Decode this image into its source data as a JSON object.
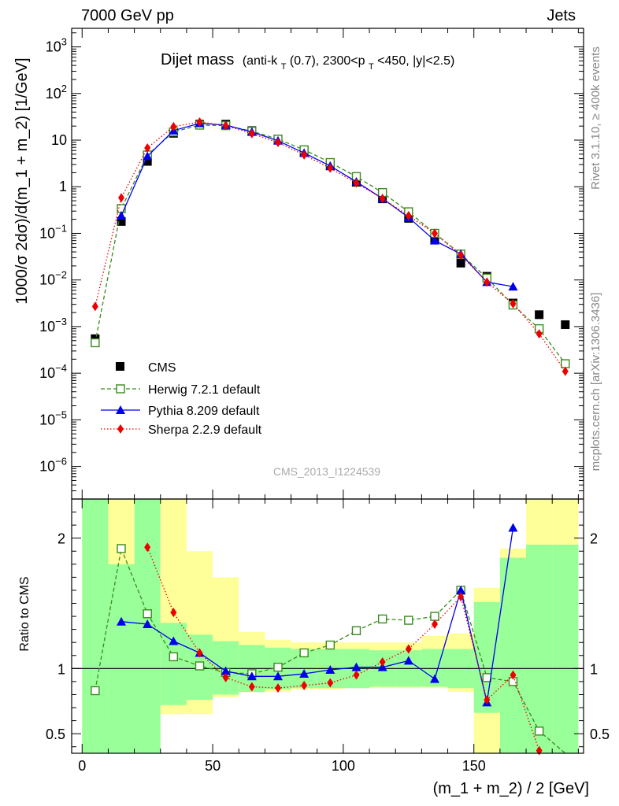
{
  "header": {
    "left": "7000 GeV pp",
    "right": "Jets",
    "rivet": "Rivet 3.1.10, ≥ 400k events",
    "mcplots": "mcplots.cern.ch [arXiv:1306.3436]",
    "analysis": "CMS_2013_I1224539"
  },
  "title": {
    "main": "Dijet mass",
    "sub_a": "(anti-k",
    "sub_a_subscript": "T",
    "sub_b": "(0.7), 2300<p",
    "sub_b_subscript": "T",
    "sub_c": "<450, |y|<2.5)"
  },
  "legend": [
    {
      "key": "cms",
      "label": "CMS"
    },
    {
      "key": "herwig",
      "label": "Herwig 7.2.1 default"
    },
    {
      "key": "pythia",
      "label": "Pythia 8.209 default"
    },
    {
      "key": "sherpa",
      "label": "Sherpa 2.2.9 default"
    }
  ],
  "colors": {
    "cms": "#000000",
    "herwig": "#3a8a1c",
    "pythia": "#0000ee",
    "sherpa": "#ee0000",
    "band_inner": "#99ff99",
    "band_outer": "#ffff99"
  },
  "chart_data": [
    {
      "type": "scatter",
      "panel": "main",
      "ylabel": "1000/σ 2dσ)/d(m_1 + m_2) [1/GeV]",
      "yscale": "log",
      "ylim": [
        2e-07,
        2500
      ],
      "xlim": [
        -4,
        192
      ],
      "y_ticks": [
        {
          "v": 1000,
          "label": "10",
          "sup": "3"
        },
        {
          "v": 100,
          "label": "10",
          "sup": "2"
        },
        {
          "v": 10,
          "label": "10",
          "sup": ""
        },
        {
          "v": 1,
          "label": "1",
          "sup": ""
        },
        {
          "v": 0.1,
          "label": "10",
          "sup": "−1"
        },
        {
          "v": 0.01,
          "label": "10",
          "sup": "−2"
        },
        {
          "v": 0.001,
          "label": "10",
          "sup": "−3"
        },
        {
          "v": 0.0001,
          "label": "10",
          "sup": "−4"
        },
        {
          "v": 1e-05,
          "label": "10",
          "sup": "−5"
        },
        {
          "v": 1e-06,
          "label": "10",
          "sup": "−6"
        }
      ],
      "x": [
        5,
        15,
        25,
        35,
        45,
        55,
        65,
        75,
        85,
        95,
        105,
        115,
        125,
        135,
        145,
        155,
        165,
        175,
        185
      ],
      "series": [
        {
          "name": "CMS",
          "key": "cms",
          "values": [
            0.00055,
            0.18,
            3.5,
            14,
            22,
            22,
            16,
            10.5,
            5.5,
            2.8,
            1.25,
            0.55,
            0.21,
            0.075,
            0.023,
            0.012,
            0.0032,
            0.0018,
            0.0011
          ]
        },
        {
          "name": "Herwig 7.2.1 default",
          "key": "herwig",
          "values": [
            0.00045,
            0.34,
            4.8,
            15,
            21,
            20.5,
            15.5,
            10.5,
            6.2,
            3.3,
            1.65,
            0.75,
            0.29,
            0.1,
            0.036,
            0.011,
            0.0029,
            0.0009,
            0.00016
          ]
        },
        {
          "name": "Pythia 8.209 default",
          "key": "pythia",
          "values": [
            null,
            0.24,
            4.5,
            16,
            23,
            21,
            15,
            9.7,
            5.3,
            2.8,
            1.28,
            0.56,
            0.22,
            0.07,
            0.036,
            0.009,
            0.0072,
            null,
            null
          ]
        },
        {
          "name": "Sherpa 2.2.9 default",
          "key": "sherpa",
          "values": [
            0.0027,
            0.58,
            6.8,
            19.5,
            24.5,
            20.5,
            13.8,
            8.9,
            4.8,
            2.5,
            1.2,
            0.56,
            0.24,
            0.1,
            0.034,
            0.009,
            0.0031,
            0.0007,
            0.00011
          ]
        }
      ]
    },
    {
      "type": "line",
      "panel": "ratio",
      "ylabel": "Ratio to CMS",
      "ylim": [
        0.35,
        2.3
      ],
      "xlim": [
        -4,
        192
      ],
      "xlabel": "(m_1 + m_2) / 2 [GeV]",
      "x_ticks": [
        0,
        50,
        100,
        150
      ],
      "y_ticks": [
        0.5,
        1,
        2
      ],
      "x": [
        5,
        15,
        25,
        35,
        45,
        55,
        65,
        75,
        85,
        95,
        105,
        115,
        125,
        135,
        145,
        155,
        165,
        175,
        185
      ],
      "bands": {
        "edges": [
          0,
          10,
          20,
          30,
          40,
          50,
          60,
          70,
          80,
          90,
          100,
          110,
          120,
          130,
          140,
          150,
          160,
          170,
          180,
          190
        ],
        "inner_lo": [
          0.35,
          0.35,
          0.35,
          0.72,
          0.76,
          0.8,
          0.82,
          0.84,
          0.85,
          0.85,
          0.85,
          0.86,
          0.86,
          0.86,
          0.85,
          0.66,
          0.35,
          0.35,
          0.35
        ],
        "inner_hi": [
          2.3,
          1.8,
          2.3,
          1.35,
          1.26,
          1.21,
          1.18,
          1.16,
          1.15,
          1.15,
          1.15,
          1.14,
          1.14,
          1.15,
          1.15,
          1.51,
          1.85,
          1.95,
          1.95
        ],
        "outer_lo": [
          0.35,
          0.6,
          0.35,
          0.65,
          0.65,
          0.78,
          0.82,
          0.82,
          0.84,
          0.84,
          0.85,
          0.85,
          0.85,
          0.85,
          0.82,
          0.35,
          0.35,
          0.35,
          0.35
        ],
        "outer_hi": [
          2.3,
          2.3,
          2.3,
          2.3,
          1.9,
          1.7,
          1.28,
          1.22,
          1.2,
          1.2,
          1.2,
          1.2,
          1.2,
          1.25,
          1.27,
          1.62,
          1.92,
          2.3,
          2.3
        ]
      },
      "series": [
        {
          "name": "Herwig 7.2.1 default",
          "key": "herwig",
          "values": [
            0.83,
            1.92,
            1.42,
            1.09,
            1.02,
            0.97,
            0.96,
            1.01,
            1.12,
            1.18,
            1.29,
            1.38,
            1.37,
            1.4,
            1.6,
            0.93,
            0.9,
            0.52,
            0.15
          ]
        },
        {
          "name": "Pythia 8.209 default",
          "key": "pythia",
          "values": [
            null,
            1.36,
            1.34,
            1.21,
            1.12,
            0.98,
            0.94,
            0.94,
            0.96,
            0.99,
            1.01,
            1.01,
            1.06,
            0.92,
            1.6,
            0.74,
            2.08,
            null,
            null
          ]
        },
        {
          "name": "Sherpa 2.2.9 default",
          "key": "sherpa",
          "values": [
            null,
            null,
            1.93,
            1.43,
            1.12,
            0.93,
            0.86,
            0.85,
            0.87,
            0.89,
            0.95,
            1.05,
            1.15,
            1.34,
            1.55,
            0.76,
            0.95,
            0.37,
            null
          ]
        }
      ]
    }
  ]
}
